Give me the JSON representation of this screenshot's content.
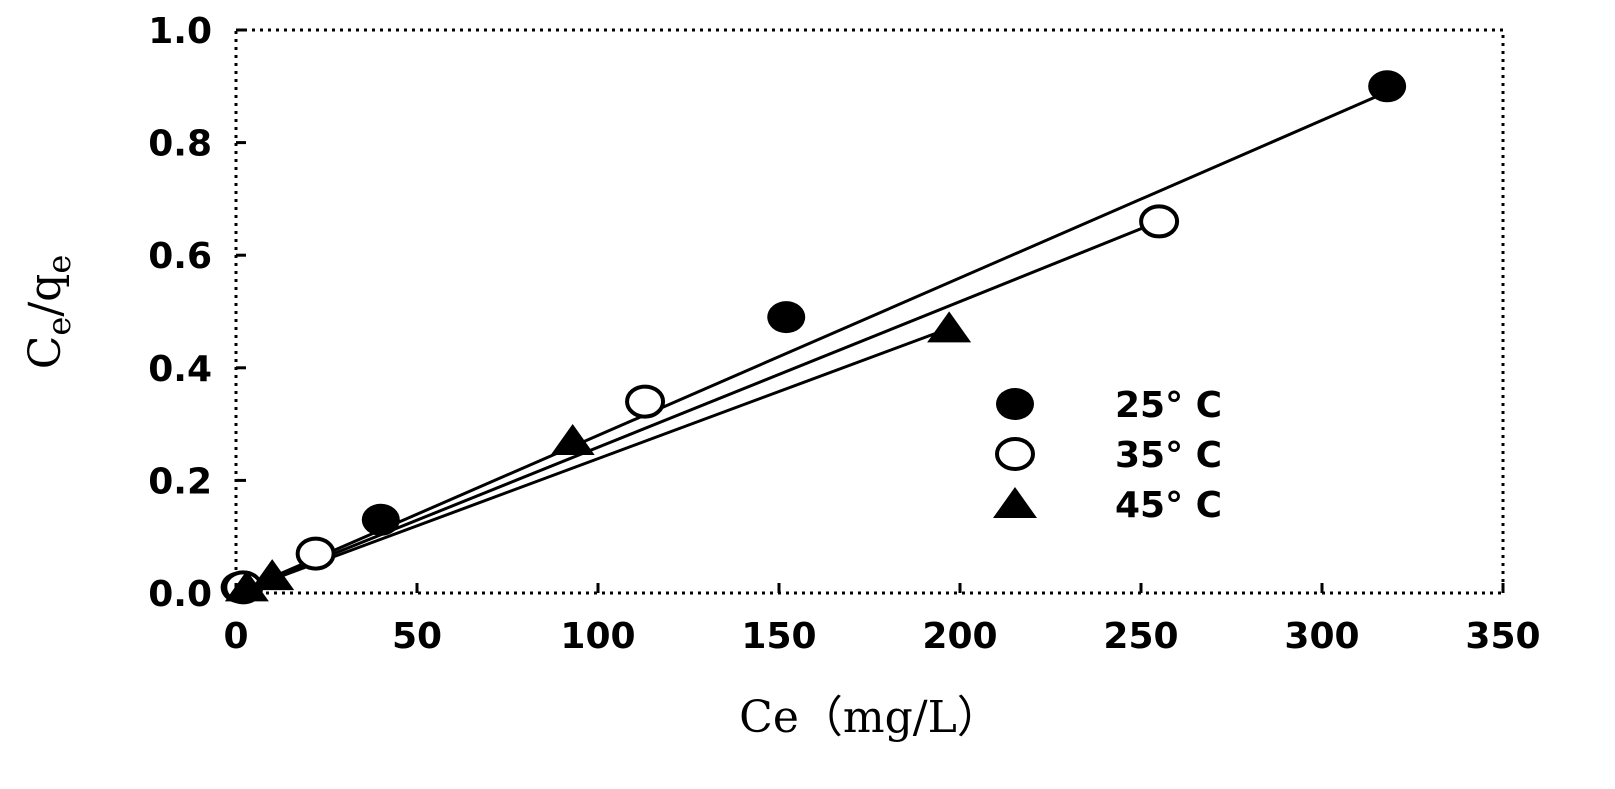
{
  "chart_data": {
    "type": "scatter",
    "title": "",
    "xlabel": "Ce（mg/L）",
    "ylabel_main": "C",
    "ylabel_sub1": "e",
    "ylabel_mid": "/q",
    "ylabel_sub2": "e",
    "xlim": [
      0,
      350
    ],
    "ylim": [
      0,
      1.0
    ],
    "xticks": [
      0,
      50,
      100,
      150,
      200,
      250,
      300,
      350
    ],
    "yticks": [
      "0.0",
      "0.2",
      "0.4",
      "0.6",
      "0.8",
      "1.0"
    ],
    "grid": false,
    "legend_position": "center-right",
    "series": [
      {
        "name": "25° C",
        "marker": "filled-circle",
        "points": [
          [
            1,
            0.01
          ],
          [
            40,
            0.13
          ],
          [
            152,
            0.49
          ],
          [
            318,
            0.9
          ]
        ],
        "fit": [
          [
            0,
            0.0
          ],
          [
            318,
            0.89
          ]
        ]
      },
      {
        "name": "35° C",
        "marker": "open-circle",
        "points": [
          [
            2,
            0.01
          ],
          [
            22,
            0.07
          ],
          [
            113,
            0.34
          ],
          [
            255,
            0.66
          ]
        ],
        "fit": [
          [
            0,
            0.0
          ],
          [
            255,
            0.66
          ]
        ]
      },
      {
        "name": "45° C",
        "marker": "filled-triangle",
        "points": [
          [
            3,
            0.01
          ],
          [
            10,
            0.03
          ],
          [
            93,
            0.27
          ],
          [
            197,
            0.47
          ]
        ],
        "fit": [
          [
            0,
            0.0
          ],
          [
            197,
            0.47
          ]
        ]
      }
    ]
  }
}
